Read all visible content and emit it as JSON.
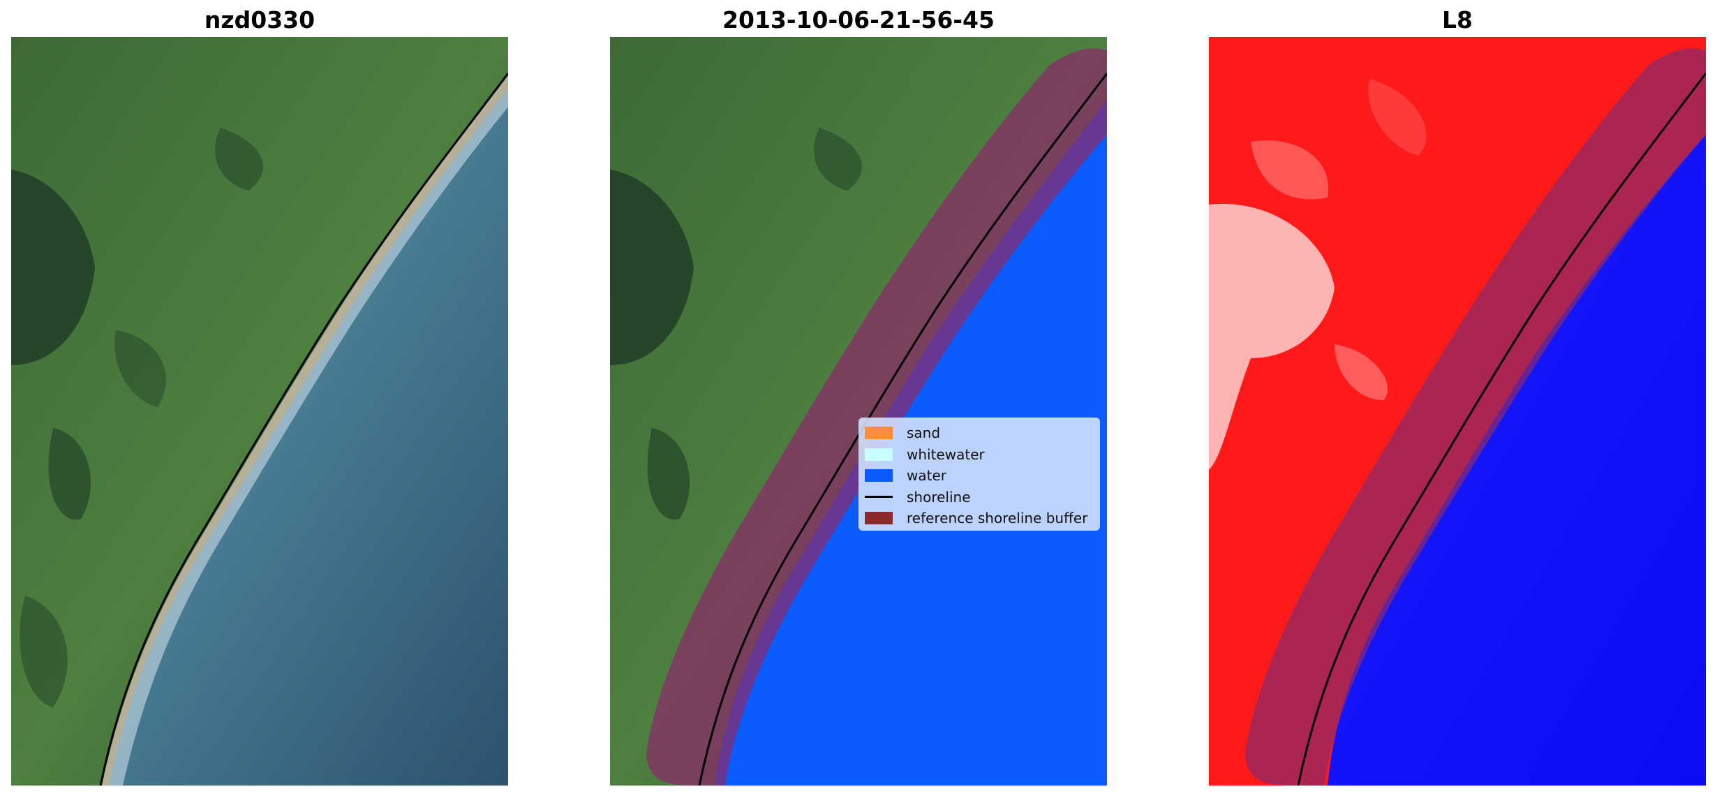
{
  "panels": [
    {
      "title": "nzd0330"
    },
    {
      "title": "2013-10-06-21-56-45"
    },
    {
      "title": "L8"
    }
  ],
  "legend": {
    "items": [
      {
        "label": "sand",
        "color": "#ff8c3a",
        "kind": "patch"
      },
      {
        "label": "whitewater",
        "color": "#c8ffff",
        "kind": "patch"
      },
      {
        "label": "water",
        "color": "#0a5cff",
        "kind": "patch"
      },
      {
        "label": "shoreline",
        "color": "#000000",
        "kind": "line"
      },
      {
        "label": "reference shoreline buffer",
        "color": "#8b2a2a",
        "kind": "patch"
      }
    ]
  },
  "colors": {
    "land": "#3f6e3a",
    "sea": "#3a6e8c",
    "classified_water": "#0a5cff",
    "buffer": "#8b2a4a",
    "index_land": "#ff1a1a",
    "index_water": "#1010ff"
  }
}
